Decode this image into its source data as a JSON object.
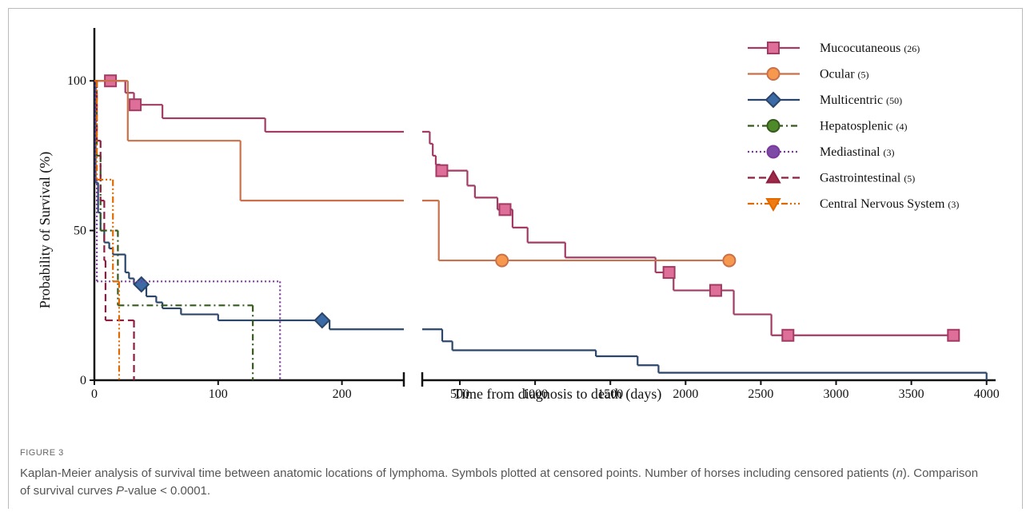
{
  "chart_data": {
    "type": "step",
    "ylabel": "Probability of Survival (%)",
    "xlabel": "Time from diagnosis to death (days)",
    "ylim": [
      0,
      115
    ],
    "yticks": [
      0,
      50,
      100
    ],
    "x_panels": [
      {
        "xlim": [
          0,
          250
        ],
        "xticks": [
          0,
          100,
          200
        ]
      },
      {
        "xlim": [
          250,
          4060
        ],
        "xticks": [
          500,
          1000,
          1500,
          2000,
          2500,
          3000,
          3500,
          4000
        ]
      }
    ],
    "legend": "upper right",
    "series": [
      {
        "name": "Mucocutaneous",
        "count_label": "(26)",
        "color": "#a23a63",
        "marker_color": "#de6f98",
        "marker": "square",
        "dash": "none",
        "x": [
          0,
          25,
          32,
          55,
          138,
          300,
          320,
          340,
          370,
          550,
          600,
          750,
          850,
          950,
          1200,
          1800,
          1920,
          2320,
          2570,
          3780
        ],
        "values": [
          100,
          96,
          92,
          87.5,
          83,
          79,
          75,
          72,
          70,
          65,
          61,
          57,
          51,
          46,
          41,
          36,
          30,
          22,
          15,
          15
        ],
        "censored_x": [
          13,
          33,
          380,
          800,
          1890,
          2200,
          2680,
          3780
        ],
        "censored_values": [
          100,
          92,
          70,
          57,
          36,
          30,
          15,
          15
        ]
      },
      {
        "name": "Ocular",
        "count_label": "(5)",
        "color": "#c8714a",
        "marker_color": "#f6994f",
        "marker": "circle",
        "dash": "none",
        "x": [
          0,
          27,
          118,
          360,
          2290
        ],
        "values": [
          100,
          80,
          60,
          40,
          40
        ],
        "censored_x": [
          780,
          2290
        ],
        "censored_values": [
          40,
          40
        ]
      },
      {
        "name": "Multicentric",
        "count_label": "(50)",
        "color": "#2b4569",
        "marker_color": "#3c6aa6",
        "marker": "diamond",
        "dash": "none",
        "x": [
          0,
          1,
          3,
          5,
          8,
          12,
          15,
          25,
          28,
          32,
          42,
          50,
          55,
          70,
          100,
          190,
          383,
          450,
          1404,
          1681,
          1820,
          4000
        ],
        "values": [
          100,
          66,
          56,
          50,
          46,
          44,
          42,
          36,
          34,
          32,
          28,
          26,
          24,
          22,
          20,
          17,
          13,
          10,
          8,
          5,
          2.5,
          0
        ],
        "censored_x": [
          38,
          184
        ],
        "censored_values": [
          32,
          20
        ]
      },
      {
        "name": "Hepatosplenic",
        "count_label": "(4)",
        "color": "#355a1c",
        "marker_color": "#4f8a2a",
        "marker": "circle",
        "dash": "8 4 2 4",
        "x": [
          0,
          2,
          5,
          19,
          128
        ],
        "values": [
          100,
          75,
          50,
          25,
          0
        ],
        "censored_x": [],
        "censored_values": []
      },
      {
        "name": "Mediastinal",
        "count_label": "(3)",
        "color": "#7a3a9c",
        "marker_color": "#7d4aa6",
        "marker": "circle",
        "dash": "2 3",
        "x": [
          0,
          1,
          2,
          150
        ],
        "values": [
          100,
          67,
          33,
          0
        ],
        "censored_x": [],
        "censored_values": []
      },
      {
        "name": "Gastrointestinal",
        "count_label": "(5)",
        "color": "#8e1d40",
        "marker_color": "#9c2a48",
        "marker": "triangle",
        "dash": "9 5",
        "x": [
          0,
          2,
          5,
          8,
          9,
          32
        ],
        "values": [
          100,
          80,
          60,
          40,
          20,
          0
        ],
        "censored_x": [],
        "censored_values": []
      },
      {
        "name": "Central Nervous System",
        "count_label": "(3)",
        "color": "#e06a00",
        "marker_color": "#f07b12",
        "marker": "triangle-down",
        "dash": "8 3 2 3 2 3",
        "x": [
          0,
          2,
          15,
          20
        ],
        "values": [
          100,
          67,
          33,
          0
        ],
        "censored_x": [],
        "censored_values": []
      }
    ]
  },
  "caption": {
    "label": "FIGURE 3",
    "parts": [
      "Kaplan-Meier analysis of survival time between anatomic locations of lymphoma. Symbols plotted at censored points. Number of horses including censored patients (",
      "n",
      "). Comparison of survival curves ",
      "P",
      "-value < 0.0001."
    ]
  }
}
